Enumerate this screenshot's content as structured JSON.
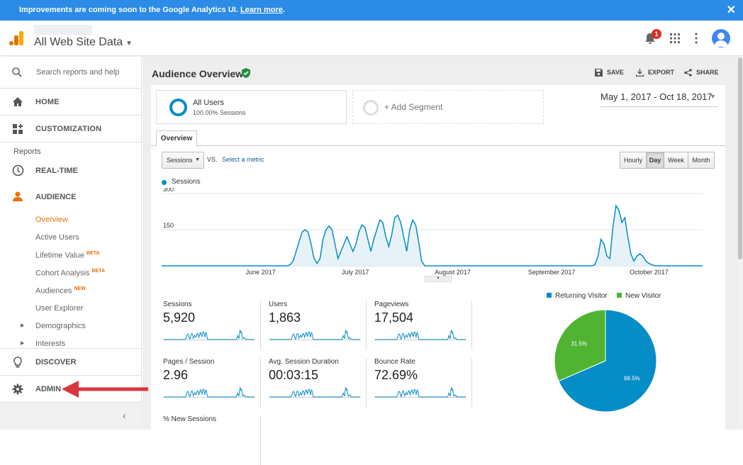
{
  "banner": {
    "text": "Improvements are coming soon to the Google Analytics UI.",
    "link": "Learn more",
    "trailing": ".",
    "close": "✕"
  },
  "header": {
    "property": "All Web Site Data",
    "notifications": "1"
  },
  "sidebar": {
    "search_placeholder": "Search reports and help",
    "home": "HOME",
    "customization": "CUSTOMIZATION",
    "reports_label": "Reports",
    "realtime": "REAL-TIME",
    "audience": "AUDIENCE",
    "sub_items": [
      "Overview",
      "Active Users",
      "Lifetime Value",
      "Cohort Analysis",
      "Audiences",
      "User Explorer",
      "Demographics",
      "Interests"
    ],
    "beta": "BETA",
    "new": "NEW",
    "discover": "DISCOVER",
    "admin": "ADMIN"
  },
  "main": {
    "title": "Audience Overview",
    "save": "SAVE",
    "export": "EXPORT",
    "share": "SHARE",
    "segment_name": "All Users",
    "segment_sub": "100.00% Sessions",
    "add_segment": "+ Add Segment",
    "date_range": "May 1, 2017 - Oct 18, 2017",
    "tab": "Overview",
    "metric_select": "Sessions",
    "vs": "VS.",
    "select_metric": "Select a metric",
    "granularity": [
      "Hourly",
      "Day",
      "Week",
      "Month"
    ],
    "legend": "Sessions"
  },
  "metrics": [
    {
      "name": "Sessions",
      "value": "5,920"
    },
    {
      "name": "Users",
      "value": "1,863"
    },
    {
      "name": "Pageviews",
      "value": "17,504"
    },
    {
      "name": "Pages / Session",
      "value": "2.96"
    },
    {
      "name": "Avg. Session Duration",
      "value": "00:03:15"
    },
    {
      "name": "Bounce Rate",
      "value": "72.69%"
    },
    {
      "name": "% New Sessions",
      "value": ""
    }
  ],
  "colors": {
    "accent": "#058dc7",
    "returning": "#058dc7",
    "new": "#50b432",
    "orange": "#e8710a"
  },
  "chart_data": [
    {
      "type": "area",
      "title": "Sessions",
      "ylim": [
        0,
        300
      ],
      "yticks": [
        "300",
        "150"
      ],
      "xticks": [
        "June 2017",
        "July 2017",
        "August 2017",
        "September 2017",
        "October 2017"
      ],
      "series": [
        {
          "name": "Sessions",
          "values": [
            0,
            0,
            0,
            0,
            0,
            0,
            0,
            0,
            0,
            0,
            0,
            0,
            0,
            0,
            0,
            0,
            0,
            0,
            0,
            0,
            0,
            0,
            0,
            0,
            0,
            0,
            0,
            0,
            0,
            0,
            0,
            0,
            0,
            0,
            0,
            0,
            0,
            0,
            0,
            0,
            0,
            0,
            0,
            5,
            20,
            60,
            100,
            140,
            150,
            140,
            90,
            30,
            10,
            30,
            110,
            150,
            165,
            150,
            90,
            30,
            60,
            90,
            120,
            90,
            60,
            90,
            140,
            170,
            160,
            110,
            60,
            110,
            150,
            190,
            180,
            120,
            80,
            130,
            200,
            210,
            180,
            120,
            60,
            150,
            190,
            170,
            100,
            20,
            0,
            0,
            0,
            0,
            0,
            0,
            0,
            0,
            0,
            0,
            0,
            0,
            0,
            0,
            0,
            0,
            0,
            0,
            0,
            0,
            0,
            0,
            0,
            0,
            0,
            0,
            0,
            0,
            0,
            0,
            0,
            0,
            0,
            0,
            0,
            0,
            0,
            0,
            0,
            0,
            0,
            0,
            0,
            0,
            0,
            0,
            0,
            0,
            0,
            0,
            0,
            0,
            0,
            0,
            0,
            0,
            0,
            5,
            40,
            110,
            90,
            40,
            30,
            160,
            250,
            230,
            180,
            200,
            120,
            50,
            20,
            40,
            50,
            40,
            20,
            10,
            5,
            0,
            0,
            0,
            0,
            0,
            0,
            0,
            0,
            0,
            0,
            0,
            0,
            0,
            0,
            0,
            0,
            0
          ]
        }
      ]
    },
    {
      "type": "pie",
      "categories": [
        "Returning Visitor",
        "New Visitor"
      ],
      "values": [
        68.5,
        31.5
      ],
      "labels": [
        "68.5%",
        "31.5%"
      ]
    }
  ]
}
